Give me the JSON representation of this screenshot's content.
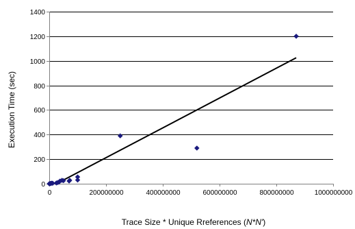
{
  "chart_data": {
    "type": "scatter",
    "title": "",
    "xlabel": {
      "prefix": "Trace Size * Unique Rreferences (",
      "var": "N*N'",
      "suffix": ")"
    },
    "ylabel": "Execution Time (sec)",
    "xlim": [
      0,
      1000000000
    ],
    "ylim": [
      0,
      1400
    ],
    "x_ticks": [
      0,
      200000000,
      400000000,
      600000000,
      800000000,
      1000000000
    ],
    "x_tick_labels": [
      "0",
      "200000000",
      "400000000",
      "600000000",
      "800000000",
      "1000000000"
    ],
    "y_ticks": [
      0,
      200,
      400,
      600,
      800,
      1000,
      1200,
      1400
    ],
    "y_tick_labels": [
      "0",
      "200",
      "400",
      "600",
      "800",
      "1000",
      "1200",
      "1400"
    ],
    "grid": "horizontal",
    "legend": "none",
    "series": [
      {
        "marker": "diamond",
        "color": "#1a1a7e",
        "points": [
          [
            0,
            0
          ],
          [
            2000000,
            1
          ],
          [
            4000000,
            2
          ],
          [
            6000000,
            3
          ],
          [
            9000000,
            5
          ],
          [
            12000000,
            4
          ],
          [
            25000000,
            6
          ],
          [
            30000000,
            10
          ],
          [
            35000000,
            15
          ],
          [
            38000000,
            22
          ],
          [
            45000000,
            28
          ],
          [
            50000000,
            25
          ],
          [
            70000000,
            22
          ],
          [
            72000000,
            28
          ],
          [
            100000000,
            30
          ],
          [
            100000000,
            55
          ],
          [
            250000000,
            390
          ],
          [
            520000000,
            290
          ],
          [
            870000000,
            1200
          ]
        ]
      }
    ],
    "trendline": {
      "type": "linear",
      "color": "#000000",
      "from": [
        50000000,
        30
      ],
      "to": [
        870000000,
        1025
      ]
    }
  }
}
